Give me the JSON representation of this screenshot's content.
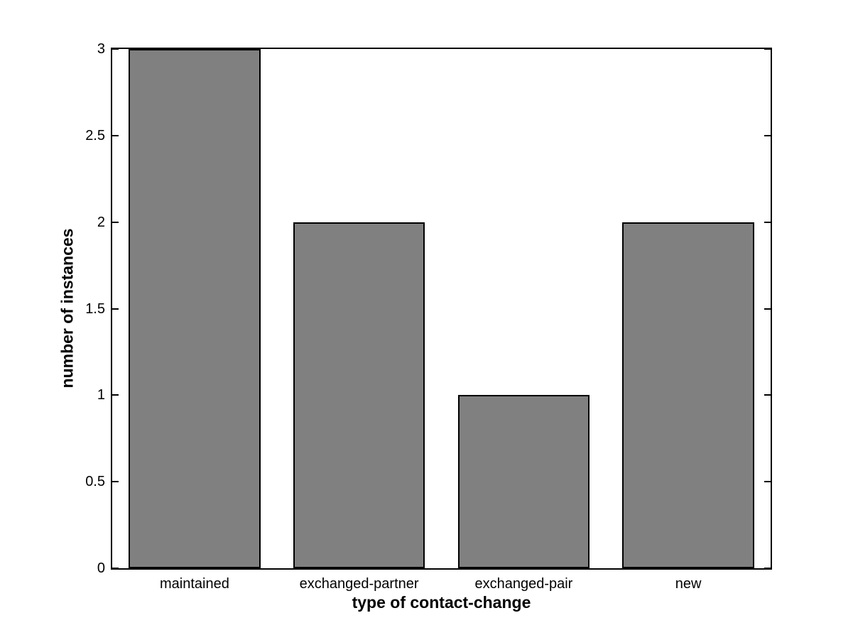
{
  "chart_data": {
    "type": "bar",
    "title": "",
    "categories": [
      "maintained",
      "exchanged-partner",
      "exchanged-pair",
      "new"
    ],
    "values": [
      3,
      2,
      1,
      2
    ],
    "xlabel": "type of contact-change",
    "ylabel": "number of instances",
    "ylim": [
      0,
      3
    ],
    "yticks": [
      0,
      0.5,
      1,
      1.5,
      2,
      2.5,
      3
    ],
    "ytick_labels": [
      "0",
      "0.5",
      "1",
      "1.5",
      "2",
      "2.5",
      "3"
    ],
    "bar_width_fraction": 0.8,
    "grid": false,
    "legend": null,
    "colors": {
      "bar_fill": "#808080",
      "bar_edge": "#000000",
      "axis": "#000000",
      "background": "#ffffff",
      "text": "#000000"
    }
  }
}
